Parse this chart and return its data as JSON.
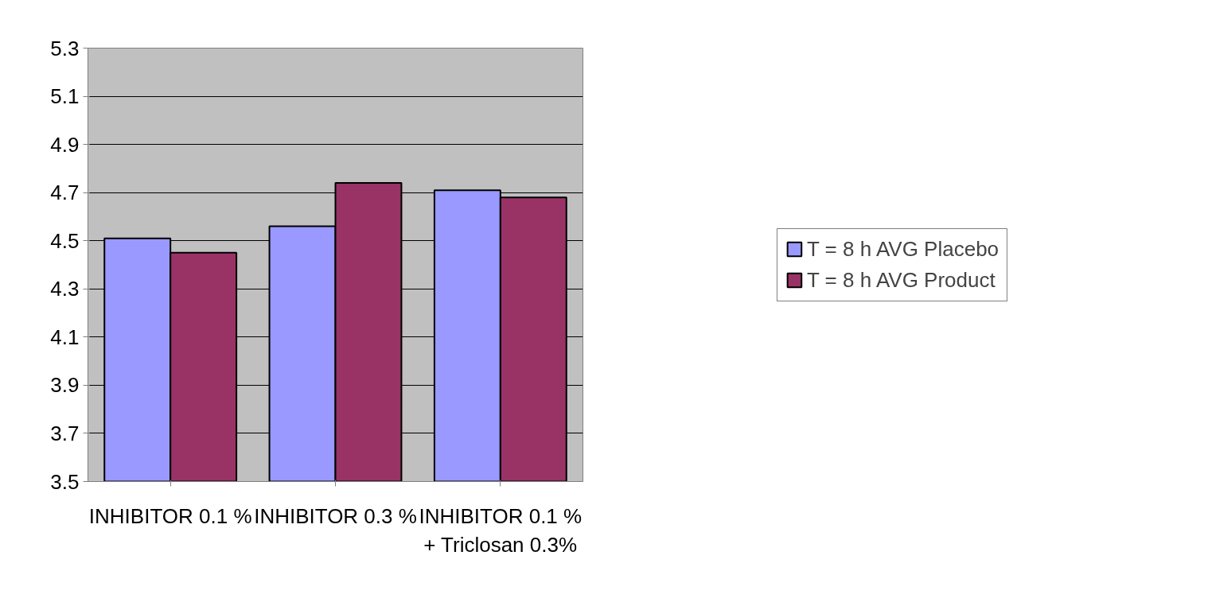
{
  "chart_data": {
    "type": "bar",
    "categories": [
      "INHIBITOR 0.1 %",
      "INHIBITOR 0.3 %",
      "INHIBITOR 0.1 %\n+ Triclosan 0.3%"
    ],
    "series": [
      {
        "name": "T = 8 h AVG Placebo",
        "color": "#9999ff",
        "values": [
          4.51,
          4.56,
          4.71
        ]
      },
      {
        "name": "T = 8 h AVG Product",
        "color": "#993366",
        "values": [
          4.45,
          4.74,
          4.68
        ]
      }
    ],
    "ylim": [
      3.5,
      5.3
    ],
    "yticks": [
      3.5,
      3.7,
      3.9,
      4.1,
      4.3,
      4.5,
      4.7,
      4.9,
      5.1,
      5.3
    ],
    "grid": "y",
    "legend": "right"
  }
}
